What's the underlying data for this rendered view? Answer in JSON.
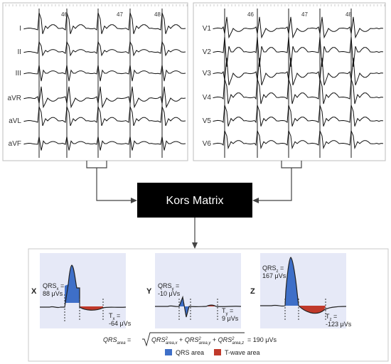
{
  "ecg_left": {
    "leads": [
      "I",
      "II",
      "III",
      "aVR",
      "aVL",
      "aVF"
    ],
    "beat_numbers": [
      "46",
      "47",
      "48"
    ]
  },
  "ecg_right": {
    "leads": [
      "V1",
      "V2",
      "V3",
      "V4",
      "V5",
      "V6"
    ],
    "beat_numbers": [
      "46",
      "47",
      "48"
    ]
  },
  "center_box": {
    "label": "Kors Matrix"
  },
  "colors": {
    "qrs": "#3e6fc8",
    "twave": "#c0392b",
    "panel_bg": "#e6e9f7",
    "box": "#000000",
    "box_text": "#ffffff"
  },
  "panels": [
    {
      "axis": "X",
      "qrs_sub": "x",
      "qrs_value": "88 μVs",
      "t_sub": "x",
      "t_value": "-64 μVs"
    },
    {
      "axis": "Y",
      "qrs_sub": "y",
      "qrs_value": "-10 μVs",
      "t_sub": "y",
      "t_value": "9 μVs"
    },
    {
      "axis": "Z",
      "qrs_sub": "z",
      "qrs_value": "167 μVs",
      "t_sub": "z",
      "t_value": "-123 μVs"
    }
  ],
  "formula": {
    "lhs_main": "QRS",
    "lhs_sub": "area",
    "equals": " = ",
    "terms": [
      {
        "main": "QRS",
        "sup": "2",
        "sub": "area,x"
      },
      {
        "main": "QRS",
        "sup": "2",
        "sub": "area,y"
      },
      {
        "main": "QRS",
        "sup": "2",
        "sub": "area,z"
      }
    ],
    "plus": " + ",
    "result": "= 190 μVs"
  },
  "legend": [
    {
      "label": "QRS area",
      "color": "#3e6fc8"
    },
    {
      "label": "T-wave area",
      "color": "#c0392b"
    }
  ]
}
